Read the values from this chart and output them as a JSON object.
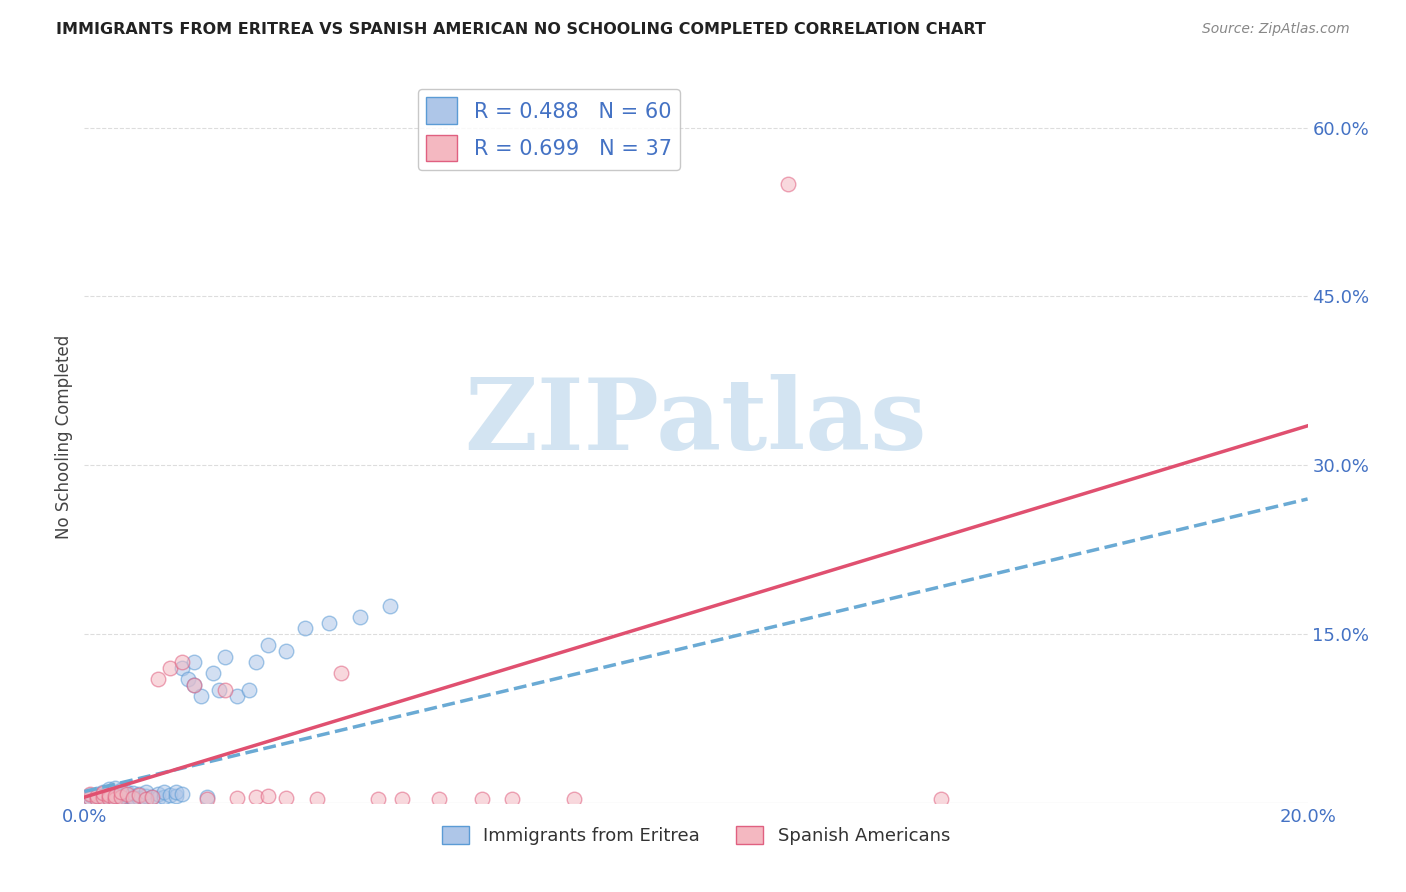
{
  "title": "IMMIGRANTS FROM ERITREA VS SPANISH AMERICAN NO SCHOOLING COMPLETED CORRELATION CHART",
  "source": "Source: ZipAtlas.com",
  "ylabel": "No Schooling Completed",
  "xlim": [
    0.0,
    0.2
  ],
  "ylim": [
    0.0,
    0.65
  ],
  "ytick_vals": [
    0.0,
    0.15,
    0.3,
    0.45,
    0.6
  ],
  "ytick_labels": [
    "",
    "15.0%",
    "30.0%",
    "45.0%",
    "60.0%"
  ],
  "xtick_vals": [
    0.0,
    0.05,
    0.1,
    0.15,
    0.2
  ],
  "xtick_labels": [
    "0.0%",
    "",
    "",
    "",
    "20.0%"
  ],
  "color_eritrea_fill": "#aec6e8",
  "color_eritrea_edge": "#5b9bd5",
  "color_spanish_fill": "#f4b8c1",
  "color_spanish_edge": "#e06080",
  "color_eritrea_line": "#6aaad4",
  "color_spanish_line": "#e05070",
  "watermark_text": "ZIPatlas",
  "watermark_color": "#cce0f0",
  "grid_color": "#dddddd",
  "legend_r1": "R = 0.488",
  "legend_n1": "N = 60",
  "legend_r2": "R = 0.699",
  "legend_n2": "N = 37",
  "label_eritrea": "Immigrants from Eritrea",
  "label_spanish": "Spanish Americans",
  "eritrea_x": [
    0.001,
    0.001,
    0.002,
    0.002,
    0.002,
    0.003,
    0.003,
    0.003,
    0.003,
    0.004,
    0.004,
    0.004,
    0.004,
    0.005,
    0.005,
    0.005,
    0.005,
    0.005,
    0.006,
    0.006,
    0.006,
    0.006,
    0.007,
    0.007,
    0.007,
    0.008,
    0.008,
    0.008,
    0.009,
    0.009,
    0.01,
    0.01,
    0.01,
    0.011,
    0.012,
    0.012,
    0.013,
    0.013,
    0.014,
    0.015,
    0.015,
    0.016,
    0.016,
    0.017,
    0.018,
    0.018,
    0.019,
    0.02,
    0.021,
    0.022,
    0.023,
    0.025,
    0.027,
    0.028,
    0.03,
    0.033,
    0.036,
    0.04,
    0.045,
    0.05
  ],
  "eritrea_y": [
    0.004,
    0.007,
    0.003,
    0.005,
    0.008,
    0.002,
    0.004,
    0.006,
    0.01,
    0.003,
    0.005,
    0.008,
    0.012,
    0.002,
    0.004,
    0.006,
    0.009,
    0.013,
    0.003,
    0.005,
    0.008,
    0.011,
    0.004,
    0.007,
    0.01,
    0.003,
    0.005,
    0.009,
    0.004,
    0.008,
    0.003,
    0.006,
    0.01,
    0.005,
    0.004,
    0.008,
    0.005,
    0.01,
    0.007,
    0.006,
    0.01,
    0.008,
    0.12,
    0.11,
    0.105,
    0.125,
    0.095,
    0.005,
    0.115,
    0.1,
    0.13,
    0.095,
    0.1,
    0.125,
    0.14,
    0.135,
    0.155,
    0.16,
    0.165,
    0.175
  ],
  "spanish_x": [
    0.001,
    0.001,
    0.002,
    0.002,
    0.003,
    0.003,
    0.004,
    0.004,
    0.005,
    0.005,
    0.006,
    0.006,
    0.007,
    0.008,
    0.009,
    0.01,
    0.011,
    0.012,
    0.014,
    0.016,
    0.018,
    0.02,
    0.023,
    0.025,
    0.028,
    0.03,
    0.033,
    0.038,
    0.042,
    0.048,
    0.052,
    0.058,
    0.065,
    0.07,
    0.08,
    0.115,
    0.14
  ],
  "spanish_y": [
    0.004,
    0.008,
    0.003,
    0.006,
    0.005,
    0.009,
    0.004,
    0.007,
    0.003,
    0.006,
    0.005,
    0.01,
    0.008,
    0.004,
    0.007,
    0.003,
    0.005,
    0.11,
    0.12,
    0.125,
    0.105,
    0.003,
    0.1,
    0.004,
    0.005,
    0.006,
    0.004,
    0.003,
    0.115,
    0.003,
    0.003,
    0.003,
    0.003,
    0.003,
    0.003,
    0.55,
    0.003
  ],
  "line_eritrea_x0": 0.0,
  "line_eritrea_x1": 0.2,
  "line_eritrea_y0": 0.01,
  "line_eritrea_y1": 0.27,
  "line_spanish_x0": 0.0,
  "line_spanish_x1": 0.2,
  "line_spanish_y0": 0.005,
  "line_spanish_y1": 0.335
}
